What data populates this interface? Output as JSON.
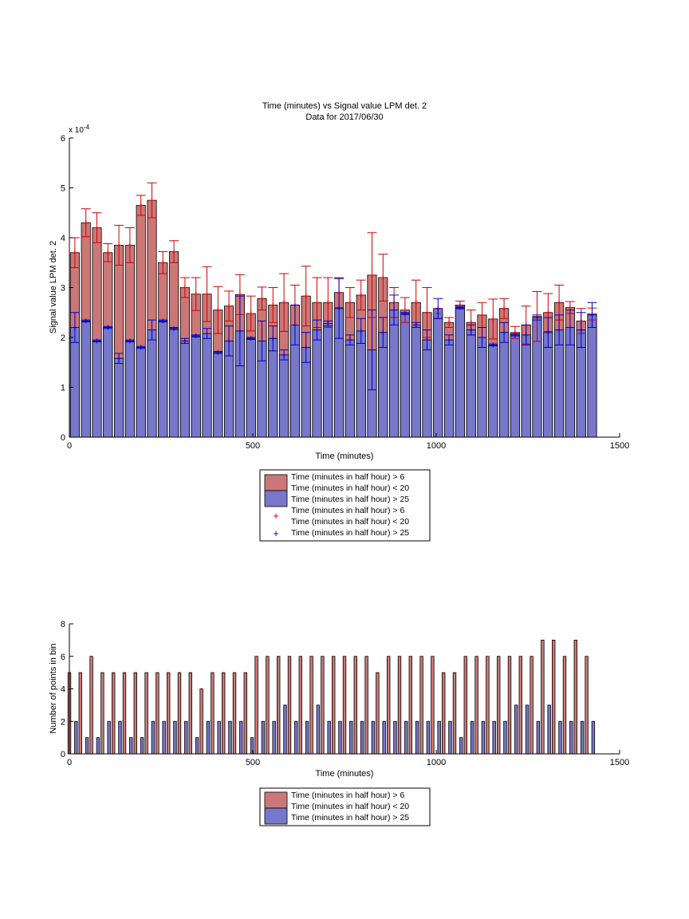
{
  "chart_data": [
    {
      "type": "bar",
      "title": "Time (minutes) vs Signal value LPM det. 2",
      "subtitle": "Data for 2017/06/30",
      "xlabel": "Time (minutes)",
      "ylabel": "Signal value LPM det. 2",
      "exponent_label": "x 10",
      "exponent_power": "-4",
      "xlim": [
        0,
        1500
      ],
      "ylim": [
        0,
        6
      ],
      "grid": false,
      "legend_position": "below",
      "x_ticks": [
        "0",
        "500",
        "1000",
        "1500"
      ],
      "y_ticks": [
        "0",
        "1",
        "2",
        "3",
        "4",
        "5",
        "6"
      ],
      "x": [
        15,
        45,
        75,
        105,
        135,
        165,
        195,
        225,
        255,
        285,
        315,
        345,
        375,
        405,
        435,
        465,
        495,
        525,
        555,
        585,
        615,
        645,
        675,
        705,
        735,
        765,
        795,
        825,
        855,
        885,
        915,
        945,
        975,
        1005,
        1035,
        1065,
        1095,
        1125,
        1155,
        1185,
        1215,
        1245,
        1275,
        1305,
        1335,
        1365,
        1395,
        1425
      ],
      "series": [
        {
          "name": "Time (minutes in half hour) > 6\nTime (minutes in half hour) < 20",
          "color": "#cc7777",
          "values": [
            3.7,
            4.3,
            4.2,
            3.7,
            3.85,
            3.85,
            4.65,
            4.75,
            3.5,
            3.72,
            3.0,
            2.87,
            2.87,
            2.55,
            2.63,
            2.86,
            2.48,
            2.78,
            2.65,
            2.7,
            2.65,
            2.83,
            2.7,
            2.7,
            2.9,
            2.7,
            2.85,
            3.25,
            3.2,
            2.7,
            2.55,
            2.7,
            2.5,
            2.48,
            2.3,
            2.65,
            2.3,
            2.45,
            2.37,
            2.58,
            2.1,
            2.25,
            2.42,
            2.5,
            2.7,
            2.6,
            2.33,
            2.47
          ],
          "err": [
            0.3,
            0.28,
            0.3,
            0.18,
            0.4,
            0.35,
            0.2,
            0.35,
            0.22,
            0.22,
            0.2,
            0.33,
            0.55,
            0.47,
            0.3,
            0.4,
            0.35,
            0.23,
            0.35,
            0.58,
            0.4,
            0.6,
            0.5,
            0.5,
            0.3,
            0.3,
            0.3,
            0.85,
            0.47,
            0.3,
            0.25,
            0.45,
            0.5,
            0.1,
            0.1,
            0.08,
            0.25,
            0.25,
            0.4,
            0.2,
            0.12,
            0.38,
            0.5,
            0.38,
            0.35,
            0.12,
            0.25,
            0.12
          ]
        },
        {
          "name": "Time (minutes in half hour) > 25",
          "color": "#7777cc",
          "values": [
            2.2,
            2.33,
            1.93,
            2.2,
            1.58,
            1.93,
            1.8,
            2.15,
            2.33,
            2.18,
            1.93,
            2.03,
            2.08,
            1.7,
            1.93,
            2.13,
            1.98,
            1.93,
            1.98,
            1.65,
            2.25,
            1.8,
            2.15,
            2.28,
            2.58,
            1.95,
            2.13,
            1.75,
            2.1,
            2.55,
            2.48,
            2.25,
            1.95,
            2.58,
            1.95,
            2.6,
            2.15,
            2.0,
            1.85,
            2.1,
            2.05,
            2.05,
            2.4,
            2.1,
            2.15,
            2.2,
            2.15,
            2.45
          ],
          "err": [
            0.3,
            0.02,
            0.02,
            0.02,
            0.1,
            0.02,
            0.02,
            0.2,
            0.02,
            0.02,
            0.05,
            0.02,
            0.1,
            0.02,
            0.3,
            0.7,
            0.02,
            0.4,
            0.25,
            0.1,
            0.4,
            0.3,
            0.2,
            0.05,
            0.6,
            0.1,
            0.25,
            0.8,
            0.3,
            0.3,
            0.02,
            0.05,
            0.2,
            0.2,
            0.1,
            0.02,
            0.1,
            0.2,
            0.02,
            0.2,
            0.02,
            0.2,
            0.05,
            0.3,
            0.3,
            0.35,
            0.35,
            0.25
          ]
        }
      ],
      "legend": [
        {
          "label": "Time (minutes in half hour) > 6",
          "marker": "red-swatch"
        },
        {
          "label": "Time (minutes in half hour) < 20",
          "marker": "none"
        },
        {
          "label": "Time (minutes in half hour) > 25",
          "marker": "blue-swatch"
        },
        {
          "label": "Time (minutes in half hour) > 6",
          "marker": "none"
        },
        {
          "label": "Time (minutes in half hour) < 20",
          "marker": "red-plus"
        },
        {
          "label": "Time (minutes in half hour) > 25",
          "marker": "blue-plus"
        }
      ]
    },
    {
      "type": "bar",
      "xlabel": "Time (minutes)",
      "ylabel": "Number of points in bin",
      "xlim": [
        0,
        1500
      ],
      "ylim": [
        0,
        8
      ],
      "grid": false,
      "legend_position": "below",
      "x_ticks": [
        "0",
        "500",
        "1000",
        "1500"
      ],
      "y_ticks": [
        "0",
        "2",
        "4",
        "6",
        "8"
      ],
      "x": [
        15,
        45,
        75,
        105,
        135,
        165,
        195,
        225,
        255,
        285,
        315,
        345,
        375,
        405,
        435,
        465,
        495,
        525,
        555,
        585,
        615,
        645,
        675,
        705,
        735,
        765,
        795,
        825,
        855,
        885,
        915,
        945,
        975,
        1005,
        1035,
        1065,
        1095,
        1125,
        1155,
        1185,
        1215,
        1245,
        1275,
        1305,
        1335,
        1365,
        1395,
        1425
      ],
      "series": [
        {
          "name": "Time (minutes in half hour) > 6\nTime (minutes in half hour) < 20",
          "color": "#cc7777",
          "values": [
            5,
            5,
            6,
            5,
            5,
            5,
            5,
            5,
            5,
            5,
            5,
            5,
            4,
            5,
            5,
            5,
            5,
            6,
            6,
            6,
            6,
            6,
            6,
            6,
            6,
            6,
            6,
            6,
            5,
            6,
            6,
            6,
            6,
            6,
            5,
            5,
            6,
            6,
            6,
            6,
            6,
            6,
            6,
            7,
            7,
            6,
            7,
            6
          ]
        },
        {
          "name": "Time (minutes in half hour) > 25",
          "color": "#7777cc",
          "values": [
            2,
            1,
            1,
            2,
            2,
            1,
            1,
            2,
            2,
            2,
            2,
            1,
            2,
            2,
            2,
            2,
            1,
            2,
            2,
            3,
            2,
            2,
            3,
            2,
            2,
            2,
            2,
            2,
            2,
            2,
            2,
            2,
            2,
            2,
            2,
            1,
            2,
            2,
            2,
            2,
            3,
            3,
            2,
            3,
            2,
            2,
            2,
            2
          ]
        }
      ],
      "legend": [
        {
          "label": "Time (minutes in half hour) > 6",
          "marker": "red-swatch"
        },
        {
          "label": "Time (minutes in half hour) < 20",
          "marker": "none"
        },
        {
          "label": "Time (minutes in half hour) > 25",
          "marker": "blue-swatch"
        }
      ]
    }
  ]
}
